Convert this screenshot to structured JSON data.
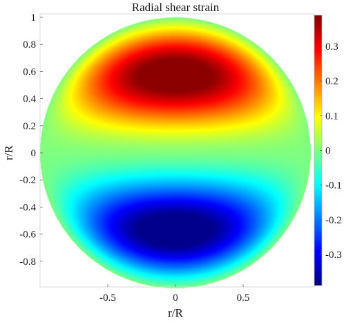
{
  "chart_data": {
    "type": "heatmap",
    "title": "Radial shear strain",
    "xlabel": "r/R",
    "ylabel": "r/R",
    "xlim": [
      -1,
      1
    ],
    "ylim": [
      -1,
      1
    ],
    "x_ticks": [
      -0.5,
      0,
      0.5
    ],
    "x_tick_labels": [
      "-0.5",
      "0",
      "0.5"
    ],
    "y_ticks": [
      -0.8,
      -0.6,
      -0.4,
      -0.2,
      0,
      0.2,
      0.4,
      0.6,
      0.8,
      1
    ],
    "y_tick_labels": [
      "-0.8",
      "-0.6",
      "-0.4",
      "-0.2",
      "0",
      "0.2",
      "0.4",
      "0.6",
      "0.8",
      "1"
    ],
    "colorbar": {
      "range": [
        -0.39,
        0.39
      ],
      "ticks": [
        -0.3,
        -0.2,
        -0.1,
        0,
        0.1,
        0.2,
        0.3
      ],
      "tick_labels": [
        "-0.3",
        "-0.2",
        "-0.1",
        "0",
        "0.1",
        "0.2",
        "0.3"
      ],
      "colormap": "jet"
    },
    "domain": "unit disk",
    "peak": {
      "x": 0,
      "y": 0.57,
      "value": 0.38
    },
    "trough": {
      "x": 0,
      "y": -0.57,
      "value": -0.38
    },
    "grid": false
  }
}
